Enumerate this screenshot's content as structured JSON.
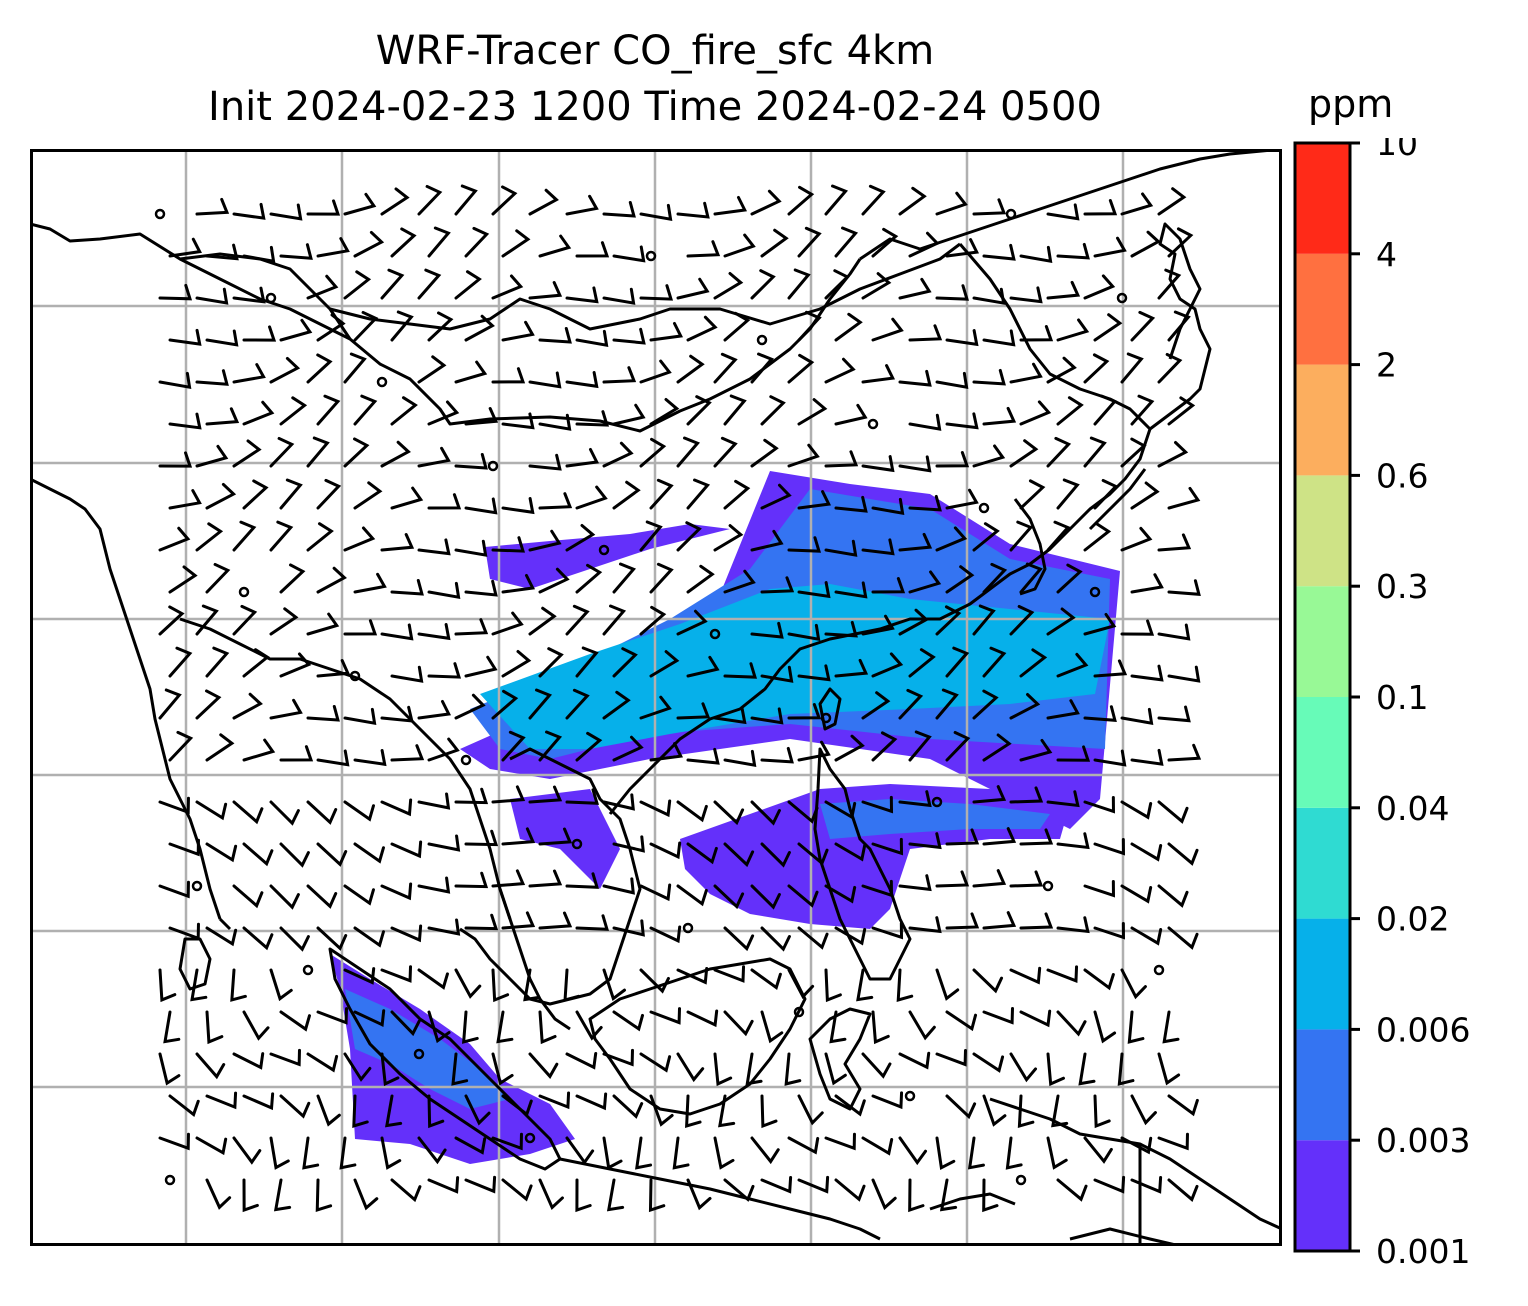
{
  "title_line1": "WRF-Tracer CO_fire_sfc 4km",
  "title_line2": "Init 2024-02-23 1200 Time 2024-02-24 0500",
  "colorbar": {
    "unit": "ppm",
    "levels": [
      "0.001",
      "0.003",
      "0.006",
      "0.02",
      "0.04",
      "0.1",
      "0.3",
      "0.6",
      "2",
      "4",
      "10"
    ],
    "colors": [
      "#6430fa",
      "#3474f2",
      "#06b0ea",
      "#2fdbd2",
      "#67fbb8",
      "#98f996",
      "#cee386",
      "#fcae5e",
      "#ff7040",
      "#ff2a18"
    ]
  },
  "map": {
    "gridlines": true,
    "tracer_colors": {
      "low": "#6430fa",
      "mid": "#3474f2",
      "high": "#06b0ea"
    },
    "coastline_color": "#000000",
    "gridline_color": "#b0b0b0"
  }
}
